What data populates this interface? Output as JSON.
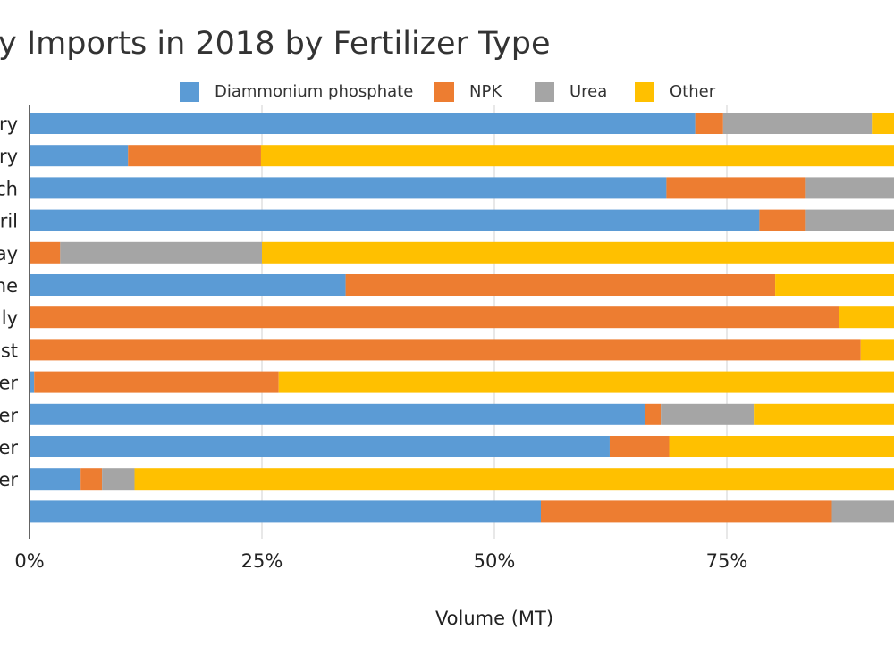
{
  "chart_data": {
    "type": "bar",
    "orientation": "horizontal",
    "stacked": "percent",
    "title": "y Imports in 2018 by Fertilizer Type",
    "xlabel": "Volume (MT)",
    "ylabel": "",
    "categories": [
      "ry",
      "ry",
      "ch",
      "ril",
      "ay",
      "ne",
      "uly",
      "ust",
      "er",
      "er",
      "er",
      "er",
      ""
    ],
    "x_ticks": [
      "0%",
      "25%",
      "50%",
      "75%"
    ],
    "xlim": [
      0,
      0.93
    ],
    "grid": true,
    "legend_position": "top",
    "series": [
      {
        "name": "Diammonium phosphate",
        "color": "#5b9bd5",
        "values": [
          0.716,
          0.106,
          0.685,
          0.785,
          0.0,
          0.34,
          0.0,
          0.0,
          0.005,
          0.662,
          0.624,
          0.055,
          0.55
        ]
      },
      {
        "name": "NPK",
        "color": "#ed7d31",
        "values": [
          0.03,
          0.143,
          0.15,
          0.05,
          0.033,
          0.462,
          0.871,
          0.894,
          0.263,
          0.017,
          0.064,
          0.023,
          0.313
        ]
      },
      {
        "name": "Urea",
        "color": "#a5a5a5",
        "values": [
          0.16,
          0.0,
          0.165,
          0.165,
          0.217,
          0.0,
          0.0,
          0.0,
          0.0,
          0.1,
          0.0,
          0.035,
          0.137
        ]
      },
      {
        "name": "Other",
        "color": "#ffc000",
        "values": [
          0.094,
          0.751,
          0.0,
          0.0,
          0.75,
          0.198,
          0.129,
          0.106,
          0.732,
          0.221,
          0.312,
          0.887,
          0.0
        ]
      }
    ]
  }
}
